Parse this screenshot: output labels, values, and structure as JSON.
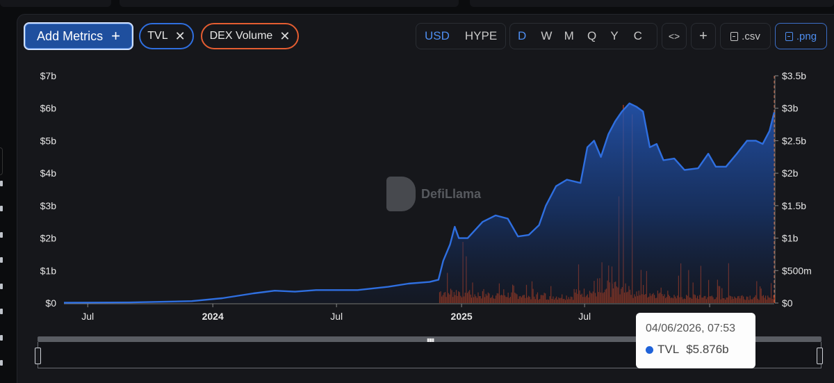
{
  "toolbar": {
    "add_metrics_label": "Add Metrics",
    "add_icon": "plus-icon",
    "chips": [
      {
        "label": "TVL",
        "color": "#2f6fe0",
        "icon": "close-icon"
      },
      {
        "label": "DEX Volume",
        "color": "#e55d31",
        "icon": "close-icon"
      }
    ],
    "currency_options": [
      "USD",
      "HYPE"
    ],
    "currency_selected": "USD",
    "period_options": [
      "D",
      "W",
      "M",
      "Q",
      "Y",
      "C"
    ],
    "period_selected": "D",
    "embed_icon": "code-icon",
    "add_chart_icon": "plus-icon",
    "csv_label": ".csv",
    "png_label": ".png"
  },
  "watermark": {
    "text": "DefiLlama",
    "icon": "llama-logo-icon"
  },
  "tooltip": {
    "date": "04/06/2026, 07:53",
    "series": "TVL",
    "value": "$5.876b",
    "color": "#1f62d9"
  },
  "chart_data": {
    "type": "line",
    "x_ticks": [
      {
        "label": "Jul",
        "date": "2023-07-01",
        "bold": false
      },
      {
        "label": "2024",
        "date": "2024-01-01",
        "bold": true
      },
      {
        "label": "Jul",
        "date": "2024-07-01",
        "bold": false
      },
      {
        "label": "2025",
        "date": "2025-01-01",
        "bold": true
      },
      {
        "label": "Jul",
        "date": "2025-07-01",
        "bold": false
      },
      {
        "label": "",
        "date": "2026-01-01",
        "bold": false
      }
    ],
    "y_left": {
      "ticks": [
        "$0",
        "$1b",
        "$2b",
        "$3b",
        "$4b",
        "$5b",
        "$6b",
        "$7b"
      ],
      "range": [
        0,
        7
      ],
      "unit": "b USD"
    },
    "y_right": {
      "ticks": [
        "$0",
        "$500m",
        "$1b",
        "$1.5b",
        "$2b",
        "$2.5b",
        "$3b",
        "$3.5b"
      ],
      "range": [
        0,
        3.5
      ],
      "unit": "b USD"
    },
    "x_range": [
      "2023-05-27",
      "2026-04-06"
    ],
    "series": [
      {
        "name": "TVL",
        "type": "area-line",
        "axis": "left",
        "color": "#2f6fe0",
        "points": [
          [
            "2023-05-27",
            0.01
          ],
          [
            "2023-09-01",
            0.02
          ],
          [
            "2023-12-01",
            0.06
          ],
          [
            "2024-01-15",
            0.15
          ],
          [
            "2024-03-01",
            0.3
          ],
          [
            "2024-04-01",
            0.38
          ],
          [
            "2024-05-01",
            0.35
          ],
          [
            "2024-06-01",
            0.4
          ],
          [
            "2024-08-01",
            0.4
          ],
          [
            "2024-09-15",
            0.5
          ],
          [
            "2024-10-15",
            0.6
          ],
          [
            "2024-11-15",
            0.65
          ],
          [
            "2024-11-28",
            0.72
          ],
          [
            "2024-12-05",
            1.3
          ],
          [
            "2024-12-15",
            1.8
          ],
          [
            "2024-12-22",
            2.35
          ],
          [
            "2024-12-28",
            2.0
          ],
          [
            "2025-01-10",
            2.0
          ],
          [
            "2025-02-01",
            2.5
          ],
          [
            "2025-02-20",
            2.7
          ],
          [
            "2025-03-10",
            2.6
          ],
          [
            "2025-03-25",
            2.05
          ],
          [
            "2025-04-10",
            2.1
          ],
          [
            "2025-04-25",
            2.4
          ],
          [
            "2025-05-05",
            3.0
          ],
          [
            "2025-05-20",
            3.6
          ],
          [
            "2025-06-05",
            3.8
          ],
          [
            "2025-06-25",
            3.7
          ],
          [
            "2025-07-05",
            4.8
          ],
          [
            "2025-07-15",
            5.0
          ],
          [
            "2025-07-25",
            4.5
          ],
          [
            "2025-08-05",
            5.2
          ],
          [
            "2025-08-15",
            5.6
          ],
          [
            "2025-08-25",
            5.9
          ],
          [
            "2025-09-05",
            6.15
          ],
          [
            "2025-09-15",
            6.05
          ],
          [
            "2025-09-25",
            5.9
          ],
          [
            "2025-10-05",
            4.8
          ],
          [
            "2025-10-15",
            4.9
          ],
          [
            "2025-10-25",
            4.4
          ],
          [
            "2025-11-10",
            4.45
          ],
          [
            "2025-11-25",
            4.1
          ],
          [
            "2025-12-15",
            4.15
          ],
          [
            "2025-12-30",
            4.6
          ],
          [
            "2026-01-10",
            4.2
          ],
          [
            "2026-01-25",
            4.2
          ],
          [
            "2026-02-10",
            4.6
          ],
          [
            "2026-02-25",
            5.0
          ],
          [
            "2026-03-10",
            5.0
          ],
          [
            "2026-03-20",
            4.9
          ],
          [
            "2026-03-30",
            5.3
          ],
          [
            "2026-04-06",
            5.876
          ]
        ]
      },
      {
        "name": "DEX Volume",
        "type": "bar",
        "axis": "right",
        "color": "#c4421c",
        "segments": [
          {
            "start": "2024-11-29",
            "end": "2025-01-15",
            "base": 0.2,
            "peak": 0.95
          },
          {
            "start": "2025-01-15",
            "end": "2025-04-01",
            "base": 0.15,
            "peak": 0.38
          },
          {
            "start": "2025-04-01",
            "end": "2025-06-15",
            "base": 0.12,
            "peak": 0.4
          },
          {
            "start": "2025-06-15",
            "end": "2025-08-10",
            "base": 0.2,
            "peak": 0.65
          },
          {
            "start": "2025-08-10",
            "end": "2025-09-10",
            "base": 0.3,
            "peak": 3.4
          },
          {
            "start": "2025-09-10",
            "end": "2025-11-01",
            "base": 0.18,
            "peak": 1.1
          },
          {
            "start": "2025-11-01",
            "end": "2026-02-01",
            "base": 0.12,
            "peak": 0.65
          },
          {
            "start": "2026-02-01",
            "end": "2026-04-06",
            "base": 0.12,
            "peak": 0.35
          }
        ]
      }
    ],
    "cursor_date": "2026-04-06"
  }
}
